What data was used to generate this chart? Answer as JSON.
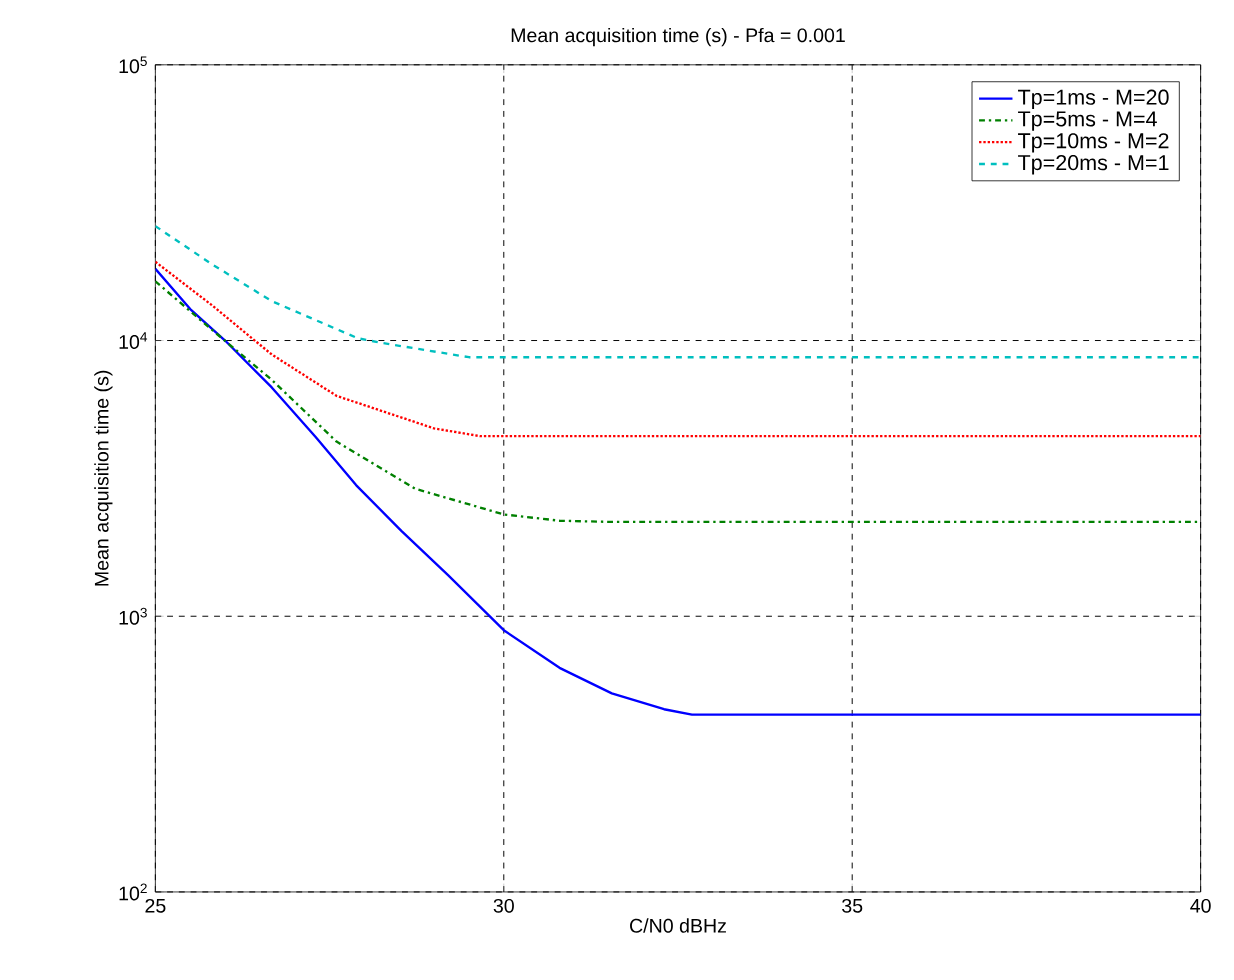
{
  "chart_data": {
    "type": "line",
    "title": "Mean acquisition time (s) - Pfa = 0.001",
    "xlabel": "C/N0 dBHz",
    "ylabel": "Mean acquisition time (s)",
    "log": "y",
    "grid": true,
    "legend": "top right",
    "xlim": [
      25,
      40
    ],
    "xticks": [
      25,
      30,
      35,
      40
    ],
    "ylim": [
      100,
      100000
    ],
    "yticks": [
      {
        "value": 100,
        "label": "10$^{2}$"
      },
      {
        "value": 1000,
        "label": "10$^{3}$"
      },
      {
        "value": 10000,
        "label": "10$^{4}$"
      },
      {
        "value": 100000,
        "label": "10$^{5}$"
      }
    ],
    "series": [
      {
        "name": "Tp=1ms   - M=20",
        "color": "#0000ff",
        "line_style": "solid",
        "x": [
          25,
          25.5,
          26,
          26.67,
          27.3,
          27.88,
          28.53,
          29.2,
          30,
          30.8,
          31.55,
          32.3,
          32.7,
          33.5,
          35,
          37.5,
          40
        ],
        "values": [
          18200,
          13000,
          10000,
          6760,
          4470,
          2990,
          2040,
          1410,
          890,
          650,
          525,
          460,
          440,
          440,
          440,
          440,
          440
        ]
      },
      {
        "name": "Tp=5ms   - M=4",
        "color": "#008000",
        "line_style": "dashdot",
        "x": [
          25,
          25.8,
          26.67,
          27.6,
          28.73,
          30,
          30.8,
          31.5,
          33,
          35,
          37.5,
          40
        ],
        "values": [
          16400,
          11000,
          7200,
          4300,
          2900,
          2340,
          2220,
          2200,
          2200,
          2200,
          2200,
          2200
        ]
      },
      {
        "name": "Tp=10ms - M=2",
        "color": "#ff0000",
        "line_style": "dotted",
        "x": [
          25,
          25.8,
          26.67,
          27.6,
          29,
          29.66,
          31,
          33,
          35,
          37.5,
          40
        ],
        "values": [
          19300,
          13500,
          8900,
          6300,
          4800,
          4500,
          4500,
          4500,
          4500,
          4500,
          4500
        ]
      },
      {
        "name": "Tp=20ms - M=1",
        "color": "#00bfbf",
        "line_style": "dashed",
        "x": [
          25,
          25.8,
          26.67,
          27.9,
          28.25,
          29.5,
          31,
          33,
          35,
          37.5,
          40
        ],
        "values": [
          26000,
          19000,
          13900,
          10200,
          9800,
          8700,
          8700,
          8700,
          8700,
          8700,
          8700
        ]
      }
    ]
  }
}
